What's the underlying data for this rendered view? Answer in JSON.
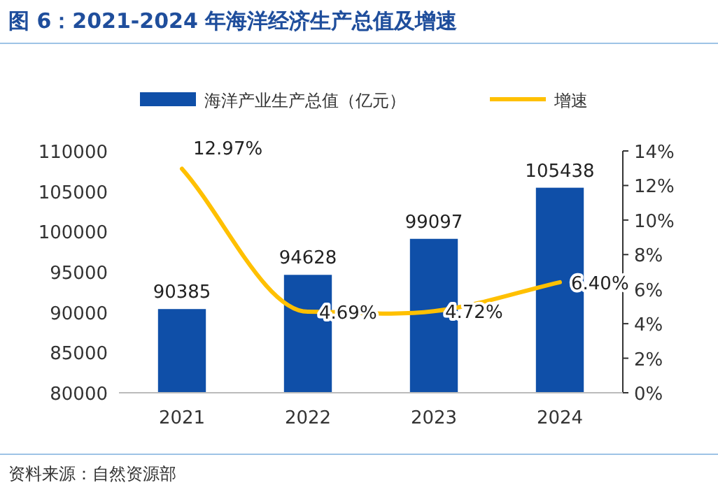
{
  "chart_data": {
    "type": "bar",
    "title": "图 6：2021-2024 年海洋经济生产总值及增速",
    "categories": [
      "2021",
      "2022",
      "2023",
      "2024"
    ],
    "series": [
      {
        "name": "海洋产业生产总值（亿元）",
        "color": "#0f4fa8",
        "values": [
          90385,
          94628,
          99097,
          105438
        ],
        "value_labels": [
          "90385",
          "94628",
          "99097",
          "105438"
        ]
      },
      {
        "name": "增速",
        "type": "line",
        "axis": "y2",
        "color": "#ffc000",
        "values": [
          12.97,
          4.69,
          4.72,
          6.4
        ],
        "value_labels": [
          "12.97%",
          "4.69%",
          "4.72%",
          "6.40%"
        ]
      }
    ],
    "ylim": [
      80000,
      110000
    ],
    "yticks": [
      80000,
      85000,
      90000,
      95000,
      100000,
      105000,
      110000
    ],
    "y2lim": [
      0,
      14
    ],
    "y2ticks": [
      {
        "value": 0,
        "label": "0%"
      },
      {
        "value": 2,
        "label": "2%"
      },
      {
        "value": 4,
        "label": "4%"
      },
      {
        "value": 6,
        "label": "6%"
      },
      {
        "value": 8,
        "label": "8%"
      },
      {
        "value": 10,
        "label": "10%"
      },
      {
        "value": 12,
        "label": "12%"
      },
      {
        "value": 14,
        "label": "14%"
      }
    ],
    "legend": "top",
    "grid": false,
    "marker": "none",
    "annotations": [
      "资料来源：自然资源部"
    ]
  }
}
